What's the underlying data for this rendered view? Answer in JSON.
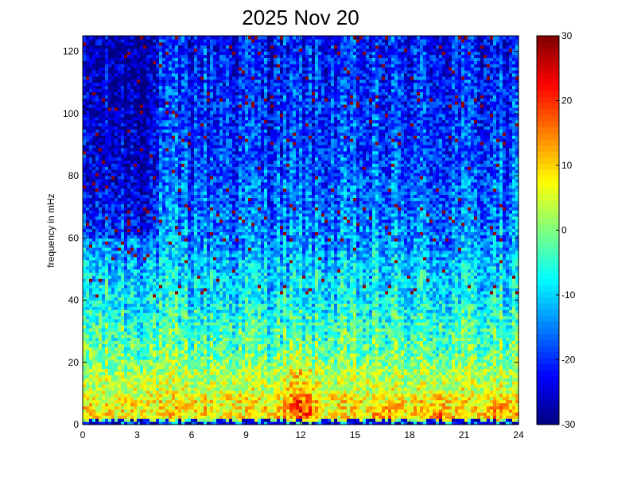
{
  "chart_data": {
    "type": "heatmap",
    "title": "2025 Nov 20",
    "xlabel": "",
    "ylabel": "frequency in mHz",
    "xlim": [
      0,
      24
    ],
    "ylim": [
      0,
      125
    ],
    "x_ticks": [
      0,
      3,
      6,
      9,
      12,
      15,
      18,
      21,
      24
    ],
    "y_ticks": [
      0,
      20,
      40,
      60,
      80,
      100,
      120
    ],
    "colorbar": {
      "range": [
        -30,
        30
      ],
      "ticks": [
        -30,
        -20,
        -10,
        0,
        10,
        20,
        30
      ],
      "colormap": "jet"
    },
    "profile": [
      {
        "f": 0,
        "v": -22
      },
      {
        "f": 2,
        "v": 8
      },
      {
        "f": 6,
        "v": 8
      },
      {
        "f": 15,
        "v": 3
      },
      {
        "f": 25,
        "v": -2
      },
      {
        "f": 40,
        "v": -8
      },
      {
        "f": 60,
        "v": -14
      },
      {
        "f": 80,
        "v": -18
      },
      {
        "f": 100,
        "v": -20
      },
      {
        "f": 125,
        "v": -21
      }
    ],
    "hotspots": [
      {
        "t": 12,
        "f_max": 30,
        "v": 22
      },
      {
        "t": 16.8,
        "f_max": 10,
        "v": 14
      },
      {
        "t": 19.5,
        "f_max": 12,
        "v": 18
      },
      {
        "t": 23,
        "f_max": 12,
        "v": 16
      }
    ]
  }
}
